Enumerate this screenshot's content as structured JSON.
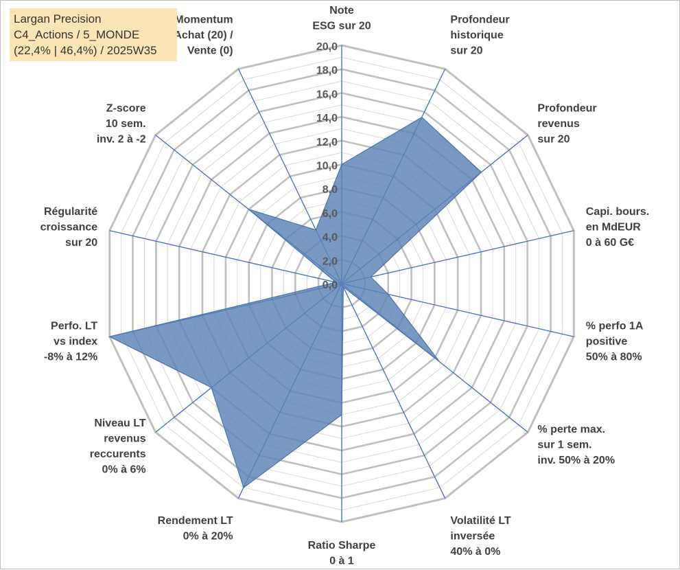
{
  "title_lines": [
    "Largan Precision",
    "C4_Actions / 5_MONDE",
    "(22,4% | 46,4%) / 2025W35"
  ],
  "colors": {
    "fill": "#5b83b4",
    "stroke": "#4a72a8",
    "spoke": "#3d6fc0",
    "ring": "#bfbfbf",
    "ring_minor": "#d9d9d9",
    "title_bg": "#fbe5b6"
  },
  "chart_data": {
    "type": "radar",
    "rmin": 0,
    "rmax": 20,
    "ticks": [
      "0,0",
      "2,0",
      "4,0",
      "6,0",
      "8,0",
      "10,0",
      "12,0",
      "14,0",
      "16,0",
      "18,0",
      "20,0"
    ],
    "categories": [
      [
        "Note",
        "ESG sur 20"
      ],
      [
        "Profondeur",
        "historique",
        "sur 20"
      ],
      [
        "Profondeur",
        "revenus",
        "sur 20"
      ],
      [
        "Capi. bours.",
        "en MdEUR",
        "0 à 60 G€"
      ],
      [
        "% perfo 1A",
        "positive",
        "50% à 80%"
      ],
      [
        "% perte max.",
        "sur 1 sem.",
        "inv. 50% à 20%"
      ],
      [
        "Volatilité LT",
        "inversée",
        "40% à 0%"
      ],
      [
        "Ratio Sharpe",
        "0 à 1"
      ],
      [
        "Rendement LT",
        "0% à 20%"
      ],
      [
        "Niveau LT",
        "revenus",
        "reccurents",
        "0% à 6%"
      ],
      [
        "Perfo. LT",
        "vs index",
        "-8% à 12%"
      ],
      [
        "Régularité",
        "croissance",
        "sur 20"
      ],
      [
        "Z-score",
        "10 sem.",
        "inv. 2 à -2"
      ],
      [
        "Momentum",
        "Achat (20) /",
        "Vente (0)"
      ]
    ],
    "values": [
      10,
      15.5,
      15,
      2.5,
      4,
      10.5,
      0.3,
      11,
      19,
      14,
      20,
      0.5,
      10,
      5
    ],
    "grid": true,
    "legend": "none"
  }
}
